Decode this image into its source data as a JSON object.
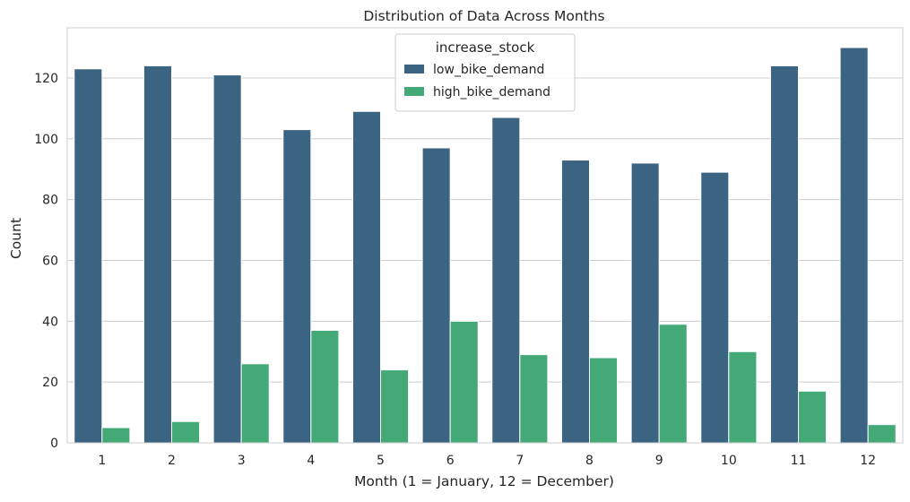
{
  "chart_data": {
    "type": "bar",
    "title": "Distribution of Data Across Months",
    "xlabel": "Month (1 = January, 12 = December)",
    "ylabel": "Count",
    "categories": [
      "1",
      "2",
      "3",
      "4",
      "5",
      "6",
      "7",
      "8",
      "9",
      "10",
      "11",
      "12"
    ],
    "yticks": [
      0,
      20,
      40,
      60,
      80,
      100,
      120
    ],
    "ylim": [
      0,
      136.5
    ],
    "grid": "horizontal",
    "legend": {
      "title": "increase_stock",
      "placement": "top-center"
    },
    "series": [
      {
        "name": "low_bike_demand",
        "color": "#3b6482",
        "values": [
          123,
          124,
          121,
          103,
          109,
          97,
          107,
          93,
          92,
          89,
          124,
          130
        ]
      },
      {
        "name": "high_bike_demand",
        "color": "#43aa77",
        "values": [
          5,
          7,
          26,
          37,
          24,
          40,
          29,
          28,
          39,
          30,
          17,
          6
        ]
      }
    ]
  }
}
